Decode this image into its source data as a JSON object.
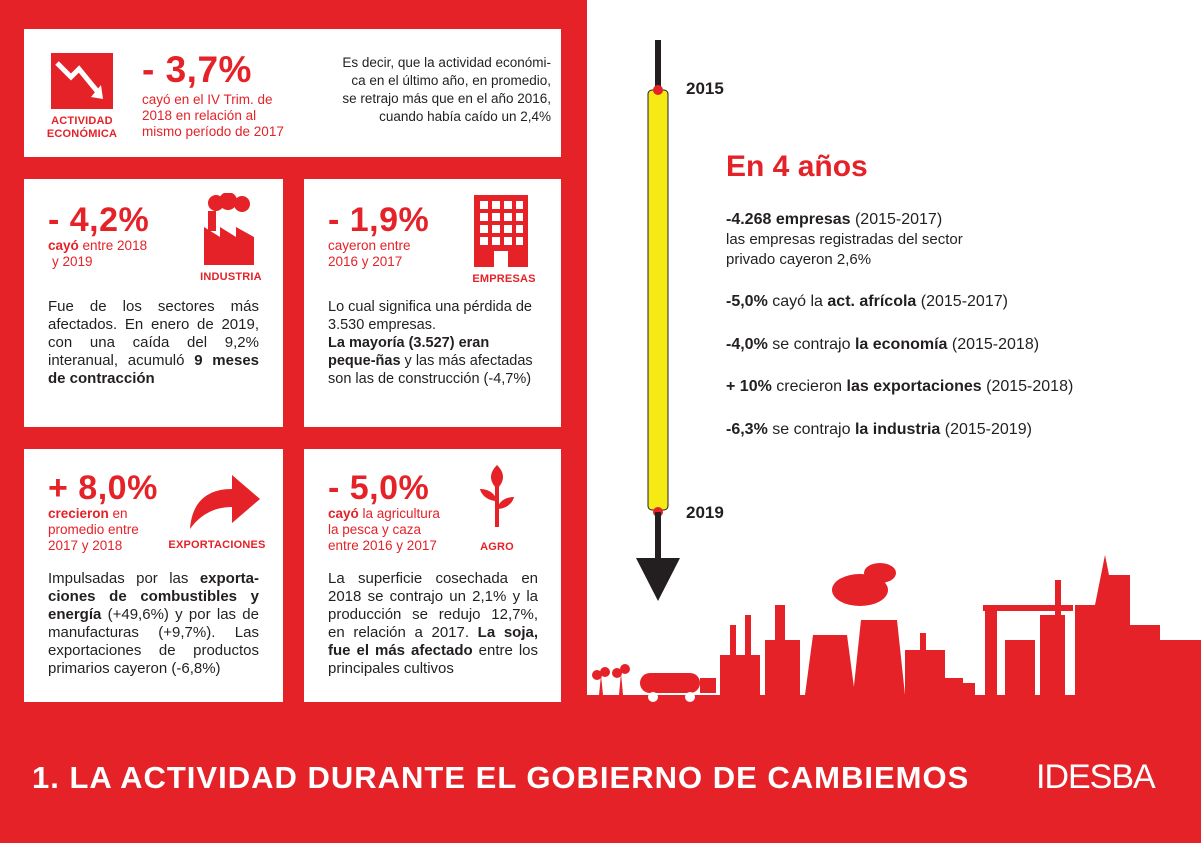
{
  "colors": {
    "accent": "#e42228",
    "timeline_bar": "#f5ea14",
    "text": "#231f20"
  },
  "actividad": {
    "icon": "falling-chart-icon",
    "label_line1": "ACTIVIDAD",
    "label_line2": "ECONÓMICA",
    "value": "- 3,7%",
    "sub_line1": "cayó en el IV Trim. de",
    "sub_line2": "2018 en relación al",
    "sub_line3": "mismo período de 2017",
    "desc_line1": "Es decir, que la actividad económi-",
    "desc_line2": "ca en el último año, en promedio,",
    "desc_line3": "se retrajo más que en el año 2016,",
    "desc_line4": "cuando había caído un 2,4%"
  },
  "industria": {
    "icon": "factory-icon",
    "label": "INDUSTRIA",
    "value": "- 4,2%",
    "sub_bold": "cayó",
    "sub_rest": " entre  2018",
    "sub_line2": "y  2019",
    "body_1": "Fue de los sectores más afectados. En enero de 2019, con una caída del 9,2% interanual, acumuló ",
    "body_bold": "9 meses de contracción"
  },
  "empresas": {
    "icon": "building-icon",
    "label": "EMPRESAS",
    "value": "- 1,9%",
    "sub_line1": "cayeron entre",
    "sub_line2": "2016 y 2017",
    "body_1": "Lo cual significa una pérdida de 3.530 empresas.",
    "body_bold": "La mayoría (3.527) eran peque-ñas",
    "body_2": " y las más afectadas son las de construcción (-4,7%)"
  },
  "exportaciones": {
    "icon": "curved-arrow-icon",
    "label": "EXPORTACIONES",
    "value": "+ 8,0%",
    "sub_bold": "crecieron",
    "sub_rest": " en",
    "sub_line2": "promedio entre",
    "sub_line3": "2017 y 2018",
    "body_1": "Impulsadas por las ",
    "body_bold": "exporta-ciones de combustibles y energía",
    "body_2": " (+49,6%) y por las de manufacturas (+9,7%).  Las exportaciones de productos primarios cayeron (-6,8%)"
  },
  "agro": {
    "icon": "plant-icon",
    "label": "AGRO",
    "value": "- 5,0%",
    "sub_bold": "cayó",
    "sub_rest": " la agricultura",
    "sub_line2": "la pesca y caza",
    "sub_line3": "entre 2016 y 2017",
    "body_1": "La superficie cosechada en 2018 se contrajo un 2,1% y la producción se redujo 12,7%, en relación a 2017. ",
    "body_bold": "La soja, fue el más afectado",
    "body_2": " entre los principales cultivos"
  },
  "timeline": {
    "start_year": "2015",
    "end_year": "2019",
    "headline": "En 4 años",
    "facts": [
      {
        "bold": "-4.268 empresas",
        "rest": " (2015-2017)"
      },
      {
        "bold": "-5,0%",
        "rest": " cayó la ",
        "bold2": "act. afrícola",
        "rest2": " (2015-2017)"
      },
      {
        "bold": "-4,0%",
        "rest": " se contrajo ",
        "bold2": "la economía",
        "rest2": "  (2015-2018)"
      },
      {
        "bold": "+ 10%",
        "rest": " crecieron ",
        "bold2": "las exportaciones",
        "rest2": " (2015-2018)"
      },
      {
        "bold": "-6,3%",
        "rest": " se contrajo ",
        "bold2": "la industria",
        "rest2": " (2015-2019)"
      }
    ],
    "fact1_line2": "las empresas registradas del sector",
    "fact1_line3": "privado cayeron 2,6%"
  },
  "footer": {
    "title": "1. LA ACTIVIDAD DURANTE EL GOBIERNO DE CAMBIEMOS",
    "logo_text": "IDESBA"
  },
  "skyline": {
    "icon": "city-skyline-icon"
  }
}
